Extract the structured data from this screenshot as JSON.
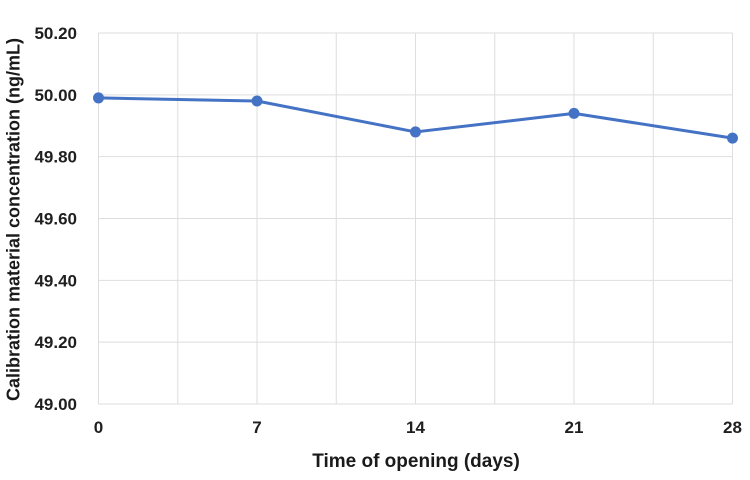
{
  "chart_data": {
    "type": "line",
    "title": "",
    "xlabel": "Time of opening (days)",
    "ylabel": "Calibration material concentration (ng/mL)",
    "x": [
      0,
      7,
      14,
      21,
      28
    ],
    "values": [
      49.99,
      49.98,
      49.88,
      49.94,
      49.86
    ],
    "xlim": [
      0,
      28
    ],
    "ylim": [
      49.0,
      50.2
    ],
    "x_tick_values": [
      0,
      7,
      14,
      21,
      28
    ],
    "x_tick_labels": [
      "0",
      "7",
      "14",
      "21",
      "28"
    ],
    "x_gridline_step": 3.5,
    "y_tick_values": [
      49.0,
      49.2,
      49.4,
      49.6,
      49.8,
      50.0,
      50.2
    ],
    "y_tick_labels": [
      "49.00",
      "49.20",
      "49.40",
      "49.60",
      "49.80",
      "50.00",
      "50.20"
    ],
    "grid": "both",
    "legend": "none",
    "line_color": "#4472C4",
    "marker_color": "#4472C4",
    "gridline_color": "#DEDEDE",
    "text_color": "#1f1f1f"
  }
}
